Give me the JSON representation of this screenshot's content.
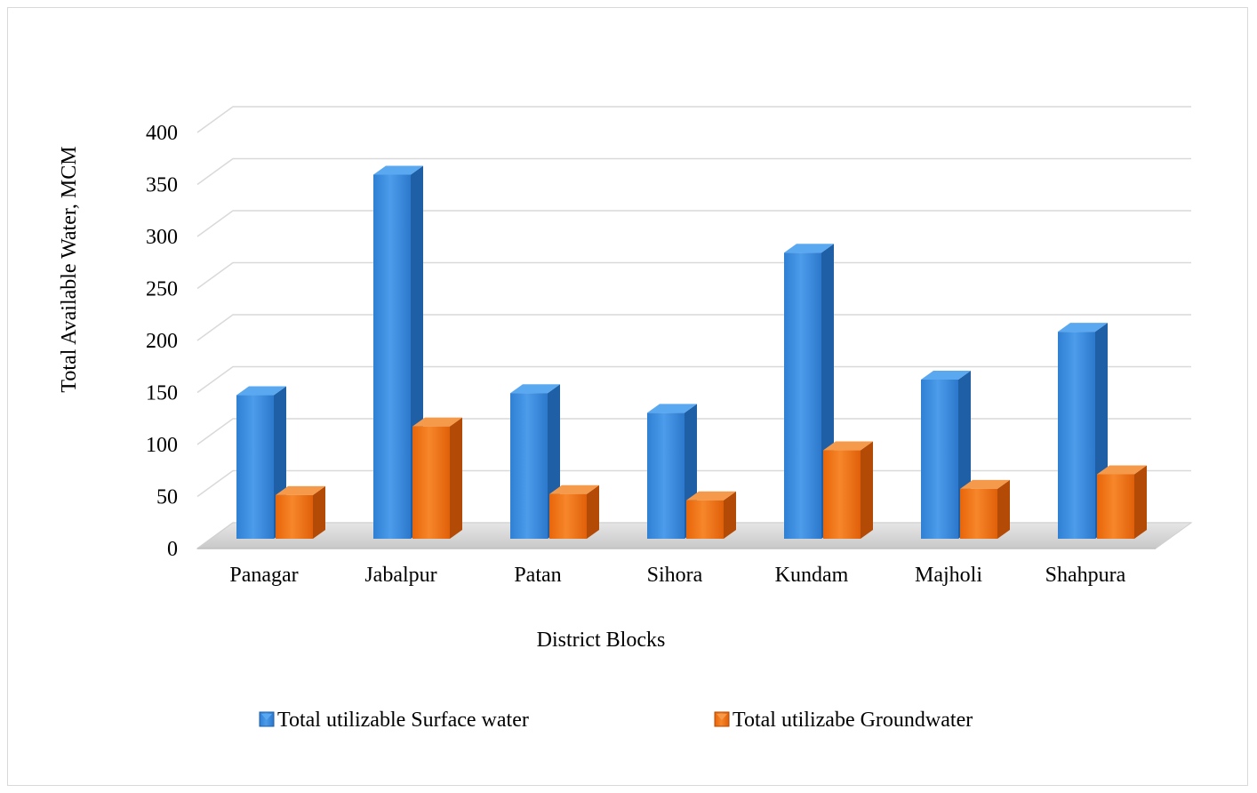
{
  "chart_data": {
    "type": "bar",
    "title": "",
    "xlabel": "District Blocks",
    "ylabel": "Total  Available  Water, MCM",
    "categories": [
      "Panagar",
      "Jabalpur",
      "Patan",
      "Sihora",
      "Kundam",
      "Majholi",
      "Shahpura"
    ],
    "series": [
      {
        "name": "Total utilizable Surface water",
        "values": [
          138,
          350,
          140,
          121,
          275,
          153,
          199
        ],
        "color": "#3a8ee0"
      },
      {
        "name": "Total utilizabe Groundwater",
        "values": [
          42,
          108,
          43,
          37,
          85,
          48,
          62
        ],
        "color": "#f0740f"
      }
    ],
    "yticks": [
      "0",
      "50",
      "100",
      "150",
      "200",
      "250",
      "300",
      "350",
      "400"
    ],
    "ylim": [
      0,
      400
    ],
    "grid": true,
    "legend": "bottom",
    "style": "3d-clustered-column"
  }
}
